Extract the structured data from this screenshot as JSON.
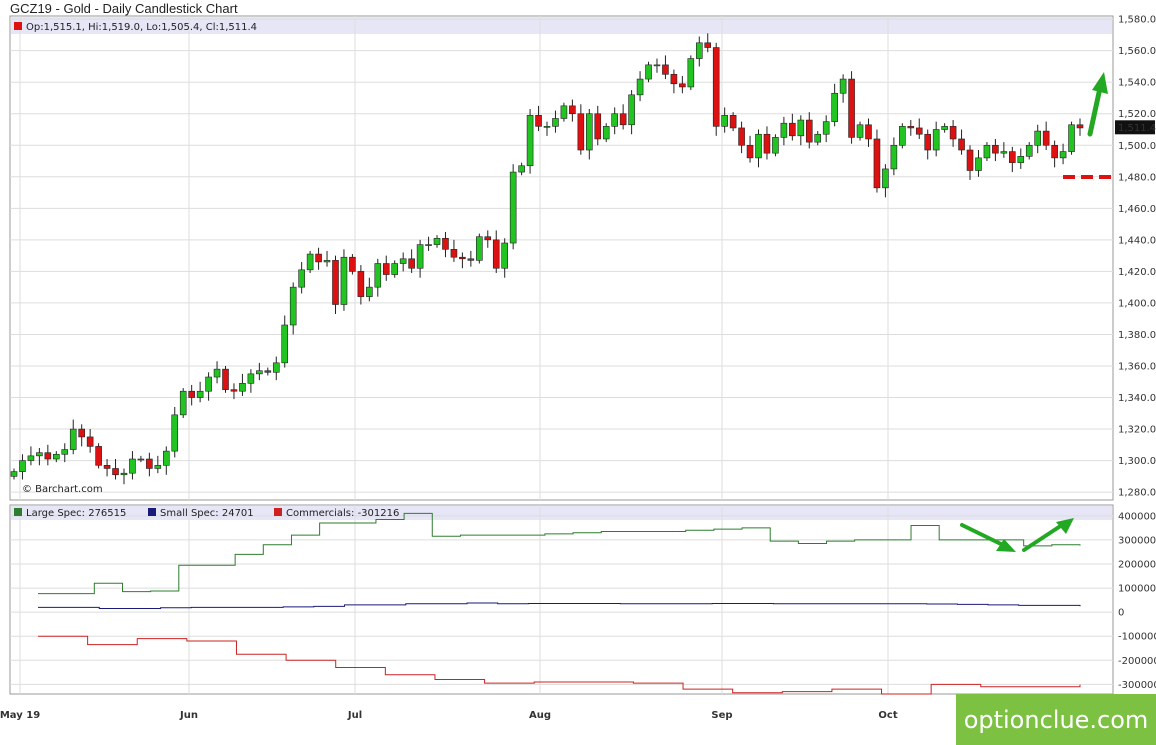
{
  "title": "GCZ19 - Gold - Daily Candlestick Chart",
  "ohlc_label": "Op:1,515.1, Hi:1,519.0, Lo:1,505.4, Cl:1,511.4",
  "credit": "© Barchart.com",
  "last_price_tag": "1,511.4",
  "watermark": "optionclue.com",
  "colors": {
    "up": "#22c422",
    "down": "#dd1111",
    "large_spec": "#2e7d2e",
    "small_spec": "#1a1a7a",
    "commercials": "#cc2222",
    "annotation_green": "#22a822",
    "annotation_red": "#dd1111",
    "grid": "#dddddd",
    "header_band": "#e6e6f7"
  },
  "legend": [
    {
      "label": "Large Spec: 276515",
      "color": "#2e7d2e"
    },
    {
      "label": "Small Spec: 24701",
      "color": "#1a1a7a"
    },
    {
      "label": "Commercials: -301216",
      "color": "#cc2222"
    }
  ],
  "chart_data": [
    {
      "type": "candlestick",
      "title": "GCZ19 - Gold - Daily Candlestick Chart",
      "y_ticks": [
        "1,580.0",
        "1,560.0",
        "1,540.0",
        "1,520.0",
        "1,500.0",
        "1,480.0",
        "1,460.0",
        "1,440.0",
        "1,420.0",
        "1,400.0",
        "1,380.0",
        "1,360.0",
        "1,340.0",
        "1,320.0",
        "1,300.0",
        "1,280.0"
      ],
      "ylim": [
        1275,
        1582
      ],
      "x_labels": [
        "May 19",
        "Jun",
        "Jul",
        "Aug",
        "Sep",
        "Oct"
      ],
      "closes": [
        1293,
        1300,
        1303,
        1305,
        1301,
        1304,
        1307,
        1320,
        1315,
        1309,
        1297,
        1295,
        1291,
        1292,
        1301,
        1301,
        1295,
        1297,
        1306,
        1329,
        1344,
        1340,
        1344,
        1353,
        1358,
        1345,
        1344,
        1349,
        1355,
        1357,
        1356,
        1362,
        1386,
        1410,
        1421,
        1431,
        1426,
        1427,
        1399,
        1429,
        1420,
        1404,
        1410,
        1425,
        1418,
        1425,
        1428,
        1422,
        1437,
        1437,
        1441,
        1434,
        1429,
        1428,
        1427,
        1442,
        1440,
        1422,
        1438,
        1483,
        1487,
        1519,
        1512,
        1512,
        1517,
        1525,
        1520,
        1497,
        1520,
        1504,
        1512,
        1520,
        1513,
        1532,
        1542,
        1551,
        1551,
        1545,
        1539,
        1537,
        1555,
        1565,
        1562,
        1512,
        1519,
        1511,
        1500,
        1492,
        1507,
        1495,
        1505,
        1514,
        1506,
        1516,
        1502,
        1507,
        1515,
        1533,
        1542,
        1505,
        1513,
        1504,
        1473,
        1485,
        1500,
        1512,
        1511,
        1507,
        1497,
        1510,
        1512,
        1504,
        1497,
        1484,
        1492,
        1500,
        1495,
        1496,
        1489,
        1493,
        1500,
        1509,
        1500,
        1492,
        1496,
        1513,
        1511
      ],
      "annotations": [
        "green arrow up",
        "red dashed level",
        "green arrows on COT panel"
      ]
    },
    {
      "type": "line",
      "title": "COT",
      "y_ticks": [
        "400000",
        "300000",
        "200000",
        "100000",
        "0",
        "-100000",
        "-200000",
        "-300000"
      ],
      "ylim": [
        -340000,
        445000
      ],
      "series": [
        {
          "name": "Large Spec: 276515",
          "values": [
            77000,
            77000,
            120000,
            85000,
            88000,
            195000,
            195000,
            240000,
            280000,
            320000,
            370000,
            370000,
            385000,
            410000,
            315000,
            320000,
            320000,
            320000,
            325000,
            330000,
            335000,
            335000,
            335000,
            340000,
            345000,
            350000,
            295000,
            285000,
            295000,
            300000,
            300000,
            360000,
            300000,
            300000,
            300000,
            275000,
            280000,
            276515
          ]
        },
        {
          "name": "Small Spec: 24701",
          "values": [
            20000,
            20000,
            15000,
            15000,
            18000,
            20000,
            20000,
            20000,
            22000,
            24000,
            30000,
            30000,
            35000,
            35000,
            38000,
            35000,
            36000,
            36000,
            36000,
            35000,
            35000,
            35000,
            36000,
            36000,
            35000,
            35000,
            35000,
            35000,
            35000,
            34000,
            32000,
            30000,
            28000,
            28000,
            24701
          ]
        },
        {
          "name": "Commercials: -301216",
          "values": [
            -100000,
            -135000,
            -110000,
            -120000,
            -175000,
            -200000,
            -230000,
            -260000,
            -280000,
            -295000,
            -290000,
            -290000,
            -295000,
            -320000,
            -335000,
            -330000,
            -320000,
            -340000,
            -300000,
            -310000,
            -310000,
            -301216
          ]
        }
      ]
    }
  ]
}
